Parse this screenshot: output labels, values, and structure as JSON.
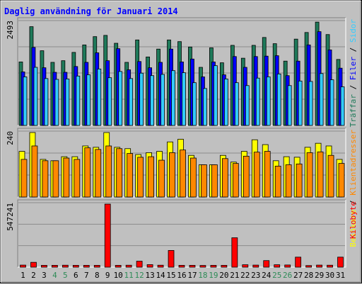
{
  "colors": {
    "frame_bg": "#c0c0c0",
    "plot_bg": "#c0c0c0",
    "grid": "#8c8c8c",
    "title": "#0000ff",
    "hits": "#1f7a5a",
    "files": "#0000ff",
    "pages": "#33ccff",
    "visits": "#ffff00",
    "sites": "#ff8800",
    "kbytes": "#ff0000",
    "weekend": "#2e8b57",
    "weekday": "#000000"
  },
  "chart_data": {
    "type": "bar",
    "title": "Daglig användning för Januari 2014",
    "categories": [
      "1",
      "2",
      "3",
      "4",
      "5",
      "6",
      "7",
      "8",
      "9",
      "10",
      "11",
      "12",
      "13",
      "14",
      "15",
      "16",
      "17",
      "18",
      "19",
      "20",
      "21",
      "22",
      "23",
      "24",
      "25",
      "26",
      "27",
      "28",
      "29",
      "30",
      "31"
    ],
    "weekend_days": [
      "4",
      "5",
      "11",
      "12",
      "18",
      "19",
      "25",
      "26"
    ],
    "panels": [
      {
        "id": "top",
        "y_tick_label": "2493",
        "ymax": 2493,
        "series_labels": [
          "Träffar",
          "Filer",
          "Sidor"
        ],
        "series": [
          {
            "name": "Träffar",
            "color_key": "hits",
            "values": [
              1530,
              2380,
              1800,
              1520,
              1560,
              1760,
              1940,
              2140,
              2170,
              1980,
              1520,
              2060,
              1650,
              1840,
              2060,
              2020,
              1890,
              1400,
              1870,
              1510,
              1930,
              1620,
              1930,
              2120,
              1970,
              1550,
              2080,
              2240,
              2490,
              2190,
              1590
            ]
          },
          {
            "name": "Filer",
            "color_key": "files",
            "values": [
              1290,
              1880,
              1390,
              1280,
              1280,
              1420,
              1520,
              1750,
              1560,
              1850,
              1340,
              1540,
              1390,
              1520,
              1840,
              1530,
              1600,
              1170,
              1530,
              1220,
              1660,
              1400,
              1660,
              1670,
              1680,
              1200,
              1550,
              1940,
              2260,
              1820,
              1380
            ]
          },
          {
            "name": "Sidor",
            "color_key": "pages",
            "values": [
              1170,
              1400,
              1130,
              1110,
              1120,
              1190,
              1220,
              1360,
              1150,
              1300,
              1130,
              1260,
              1200,
              1230,
              1320,
              1270,
              1030,
              890,
              1440,
              1120,
              1030,
              960,
              1140,
              1170,
              1240,
              960,
              1070,
              1060,
              1250,
              1100,
              930
            ]
          }
        ]
      },
      {
        "id": "middle",
        "y_tick_label": "240",
        "ymax": 240,
        "series_labels": [
          "Besökare",
          "Klientadresser"
        ],
        "series": [
          {
            "name": "Besökare",
            "color_key": "visits",
            "values": [
              170,
              240,
              140,
              135,
              150,
              150,
              190,
              185,
              240,
              185,
              180,
              158,
              165,
              170,
              205,
              215,
              155,
              120,
              120,
              155,
              130,
              170,
              213,
              195,
              135,
              150,
              148,
              185,
              200,
              190,
              140
            ]
          },
          {
            "name": "Klientadresser",
            "color_key": "sites",
            "values": [
              140,
              190,
              135,
              135,
              145,
              140,
              183,
              177,
              190,
              180,
              162,
              148,
              150,
              137,
              165,
              175,
              145,
              120,
              120,
              143,
              125,
              152,
              167,
              170,
              115,
              120,
              123,
              165,
              168,
              155,
              125
            ]
          }
        ]
      },
      {
        "id": "bottom",
        "y_tick_label": "547241",
        "ymax": 547241,
        "series_labels": [
          "Kilobyte"
        ],
        "series": [
          {
            "name": "Kilobyte",
            "color_key": "kbytes",
            "values": [
              18000,
              42000,
              16000,
              16000,
              17000,
              16000,
              16000,
              16000,
              547241,
              16000,
              17000,
              52000,
              22000,
              17000,
              145000,
              16000,
              16000,
              15000,
              16000,
              16000,
              255000,
              21000,
              18000,
              57000,
              21000,
              19000,
              87000,
              14000,
              18000,
              17000,
              87000
            ]
          }
        ]
      }
    ]
  }
}
